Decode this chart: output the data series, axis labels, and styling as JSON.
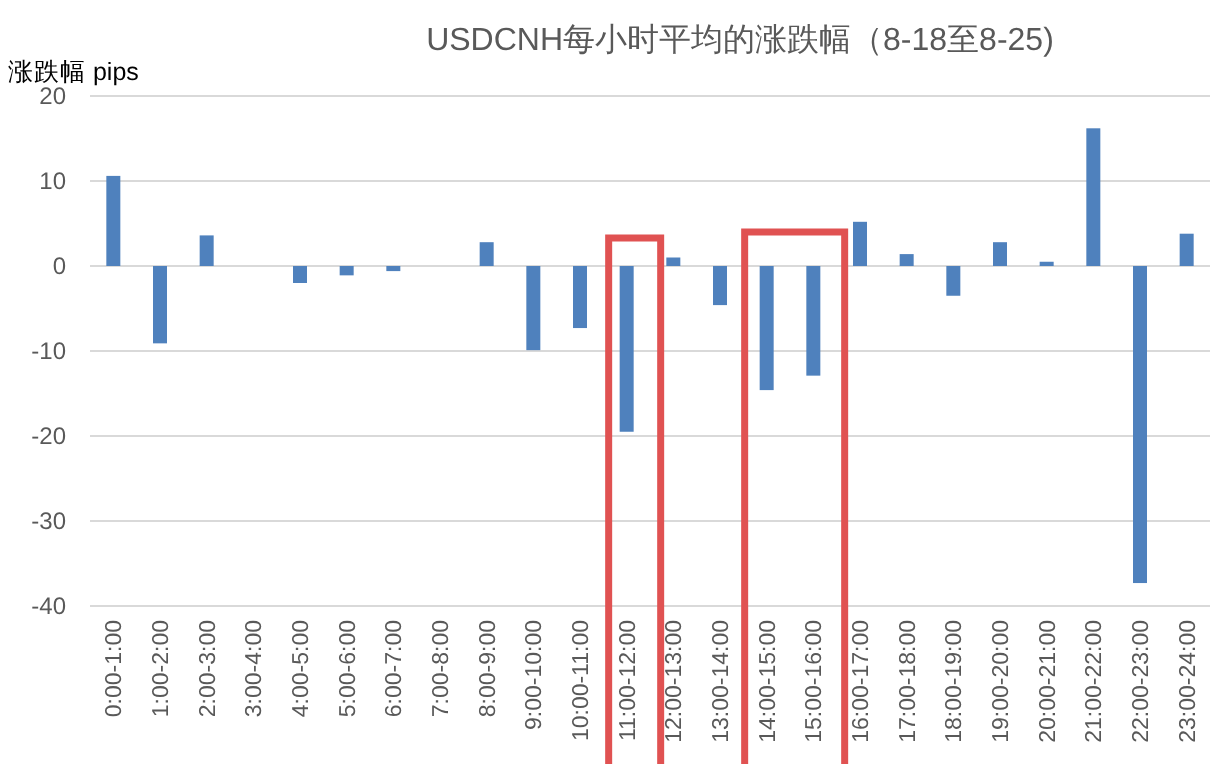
{
  "chart_data": {
    "type": "bar",
    "title": "USDCNH每小时平均的涨跌幅（8-18至8-25)",
    "ylabel": "涨跌幅 pips",
    "categories": [
      "0:00-1:00",
      "1:00-2:00",
      "2:00-3:00",
      "3:00-4:00",
      "4:00-5:00",
      "5:00-6:00",
      "6:00-7:00",
      "7:00-8:00",
      "8:00-9:00",
      "9:00-10:00",
      "10:00-11:00",
      "11:00-12:00",
      "12:00-13:00",
      "13:00-14:00",
      "14:00-15:00",
      "15:00-16:00",
      "16:00-17:00",
      "17:00-18:00",
      "18:00-19:00",
      "19:00-20:00",
      "20:00-21:00",
      "21:00-22:00",
      "22:00-23:00",
      "23:00-24:00"
    ],
    "values": [
      10.6,
      -9.1,
      3.6,
      0,
      -2.0,
      -1.1,
      -0.6,
      0,
      2.8,
      -9.9,
      -7.3,
      -19.5,
      1.0,
      -4.6,
      -14.6,
      -12.9,
      5.2,
      1.4,
      -3.5,
      2.8,
      0.5,
      16.2,
      -37.3,
      3.8
    ],
    "color": "#4f81bd",
    "ylim": [
      -40,
      20
    ],
    "yticks": [
      -40,
      -30,
      -20,
      -10,
      0,
      10,
      20
    ],
    "grid": "y"
  }
}
